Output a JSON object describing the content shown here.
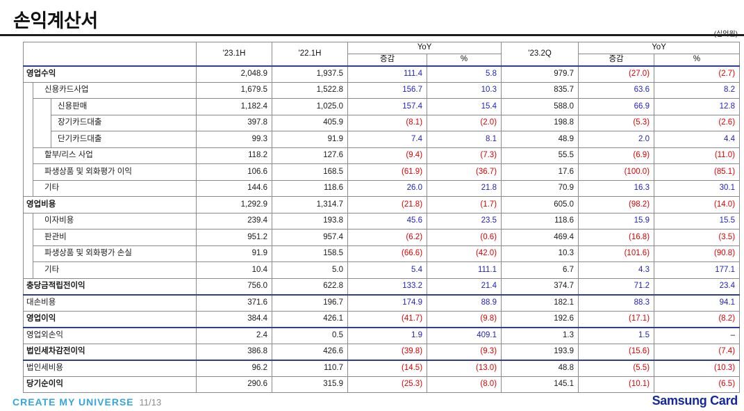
{
  "slide": {
    "title": "손익계산서",
    "unit_note": "(십억원)",
    "footer": {
      "slogan": "CREATE MY UNIVERSE",
      "page": "11/13",
      "brand": "Samsung Card"
    }
  },
  "colors": {
    "navy_rule": "#2F3C93",
    "positive_blue": "#2222C4",
    "negative_red": "#E00000",
    "slogan_blue": "#36A5DE",
    "brand_blue": "#1428A0"
  },
  "table": {
    "header": {
      "col_23_1h": "'23.1H",
      "col_22_1h": "'22.1H",
      "yoy": "YoY",
      "delta": "증감",
      "pct": "%",
      "col_23_2q": "'23.2Q"
    },
    "rows": [
      {
        "label": "영업수익",
        "level": 0,
        "bold": true,
        "values": [
          "2,048.9",
          "1,937.5",
          "111.4",
          "5.8",
          "979.7",
          "(27.0)",
          "(2.7)"
        ]
      },
      {
        "label": "신용카드사업",
        "level": 1,
        "values": [
          "1,679.5",
          "1,522.8",
          "156.7",
          "10.3",
          "835.7",
          "63.6",
          "8.2"
        ]
      },
      {
        "label": "신용판매",
        "level": 2,
        "values": [
          "1,182.4",
          "1,025.0",
          "157.4",
          "15.4",
          "588.0",
          "66.9",
          "12.8"
        ]
      },
      {
        "label": "장기카드대출",
        "level": 2,
        "values": [
          "397.8",
          "405.9",
          "(8.1)",
          "(2.0)",
          "198.8",
          "(5.3)",
          "(2.6)"
        ]
      },
      {
        "label": "단기카드대출",
        "level": 2,
        "values": [
          "99.3",
          "91.9",
          "7.4",
          "8.1",
          "48.9",
          "2.0",
          "4.4"
        ]
      },
      {
        "label": "할부/리스 사업",
        "level": 1,
        "values": [
          "118.2",
          "127.6",
          "(9.4)",
          "(7.3)",
          "55.5",
          "(6.9)",
          "(11.0)"
        ]
      },
      {
        "label": "파생상품 및 외화평가 이익",
        "level": 1,
        "values": [
          "106.6",
          "168.5",
          "(61.9)",
          "(36.7)",
          "17.6",
          "(100.0)",
          "(85.1)"
        ]
      },
      {
        "label": "기타",
        "level": 1,
        "values": [
          "144.6",
          "118.6",
          "26.0",
          "21.8",
          "70.9",
          "16.3",
          "30.1"
        ]
      },
      {
        "label": "영업비용",
        "level": 0,
        "bold": true,
        "values": [
          "1,292.9",
          "1,314.7",
          "(21.8)",
          "(1.7)",
          "605.0",
          "(98.2)",
          "(14.0)"
        ]
      },
      {
        "label": "이자비용",
        "level": 1,
        "values": [
          "239.4",
          "193.8",
          "45.6",
          "23.5",
          "118.6",
          "15.9",
          "15.5"
        ]
      },
      {
        "label": "판관비",
        "level": 1,
        "values": [
          "951.2",
          "957.4",
          "(6.2)",
          "(0.6)",
          "469.4",
          "(16.8)",
          "(3.5)"
        ]
      },
      {
        "label": "파생상품 및 외화평가 손실",
        "level": 1,
        "values": [
          "91.9",
          "158.5",
          "(66.6)",
          "(42.0)",
          "10.3",
          "(101.6)",
          "(90.8)"
        ]
      },
      {
        "label": "기타",
        "level": 1,
        "values": [
          "10.4",
          "5.0",
          "5.4",
          "111.1",
          "6.7",
          "4.3",
          "177.1"
        ]
      },
      {
        "label": "충당금적립전이익",
        "level": 0,
        "bold": true,
        "divider": true,
        "values": [
          "756.0",
          "622.8",
          "133.2",
          "21.4",
          "374.7",
          "71.2",
          "23.4"
        ]
      },
      {
        "label": "대손비용",
        "level": 0,
        "values": [
          "371.6",
          "196.7",
          "174.9",
          "88.9",
          "182.1",
          "88.3",
          "94.1"
        ]
      },
      {
        "label": "영업이익",
        "level": 0,
        "bold": true,
        "divider": true,
        "values": [
          "384.4",
          "426.1",
          "(41.7)",
          "(9.8)",
          "192.6",
          "(17.1)",
          "(8.2)"
        ]
      },
      {
        "label": "영업외손익",
        "level": 0,
        "values": [
          "2.4",
          "0.5",
          "1.9",
          "409.1",
          "1.3",
          "1.5",
          "–"
        ]
      },
      {
        "label": "법인세차감전이익",
        "level": 0,
        "bold": true,
        "divider": true,
        "values": [
          "386.8",
          "426.6",
          "(39.8)",
          "(9.3)",
          "193.9",
          "(15.6)",
          "(7.4)"
        ]
      },
      {
        "label": "법인세비용",
        "level": 0,
        "values": [
          "96.2",
          "110.7",
          "(14.5)",
          "(13.0)",
          "48.8",
          "(5.5)",
          "(10.3)"
        ]
      },
      {
        "label": "당기순이익",
        "level": 0,
        "bold": true,
        "values": [
          "290.6",
          "315.9",
          "(25.3)",
          "(8.0)",
          "145.1",
          "(10.1)",
          "(6.5)"
        ]
      }
    ]
  }
}
